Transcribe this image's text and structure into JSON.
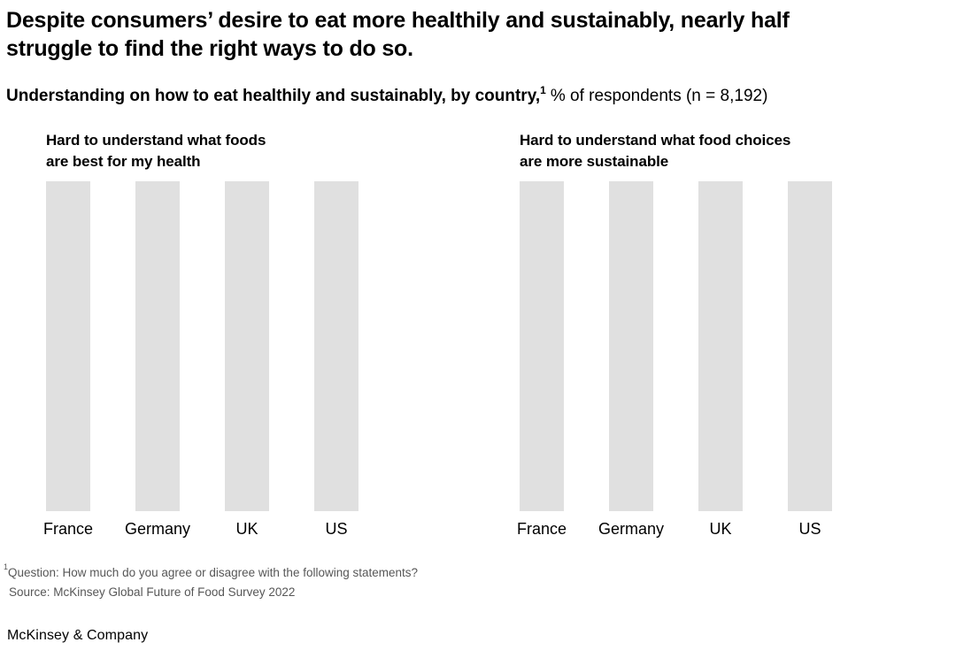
{
  "header": {
    "title_line1": "Despite consumers’ desire to eat more healthily and sustainably, nearly half",
    "title_line2": "struggle to find the right ways to do so.",
    "subtitle_bold": "Understanding on how to eat healthily and sustainably, by country,",
    "subtitle_superscript": "1",
    "subtitle_regular": "% of respondents (n = 8,192)"
  },
  "charts": [
    {
      "title_line1": "Hard to understand what foods",
      "title_line2": "are best for my health",
      "categories": [
        "France",
        "Germany",
        "UK",
        "US"
      ]
    },
    {
      "title_line1": "Hard to understand what food choices",
      "title_line2": "are more sustainable",
      "categories": [
        "France",
        "Germany",
        "UK",
        "US"
      ]
    }
  ],
  "chart_data": [
    {
      "type": "bar",
      "title": "Hard to understand what foods are best for my health",
      "categories": [
        "France",
        "Germany",
        "UK",
        "US"
      ],
      "values": [
        null,
        null,
        null,
        null
      ],
      "value_labels_shown": false,
      "bar_relative_heights": [
        1,
        1,
        1,
        1
      ],
      "unit": "% of respondents",
      "axes_shown": false,
      "grid": false,
      "legend": "none"
    },
    {
      "type": "bar",
      "title": "Hard to understand what food choices are more sustainable",
      "categories": [
        "France",
        "Germany",
        "UK",
        "US"
      ],
      "values": [
        null,
        null,
        null,
        null
      ],
      "value_labels_shown": false,
      "bar_relative_heights": [
        1,
        1,
        1,
        1
      ],
      "unit": "% of respondents",
      "axes_shown": false,
      "grid": false,
      "legend": "none"
    }
  ],
  "footnotes": {
    "superscript": "1",
    "line1": "Question: How much do you agree or disagree with the following statements?",
    "line2": "Source: McKinsey Global Future of Food Survey 2022"
  },
  "branding": {
    "logo_text": "McKinsey & Company"
  },
  "colors": {
    "bar_fill": "#e0e0e0",
    "footnote_text": "#575757",
    "text": "#000000",
    "background": "#ffffff"
  }
}
